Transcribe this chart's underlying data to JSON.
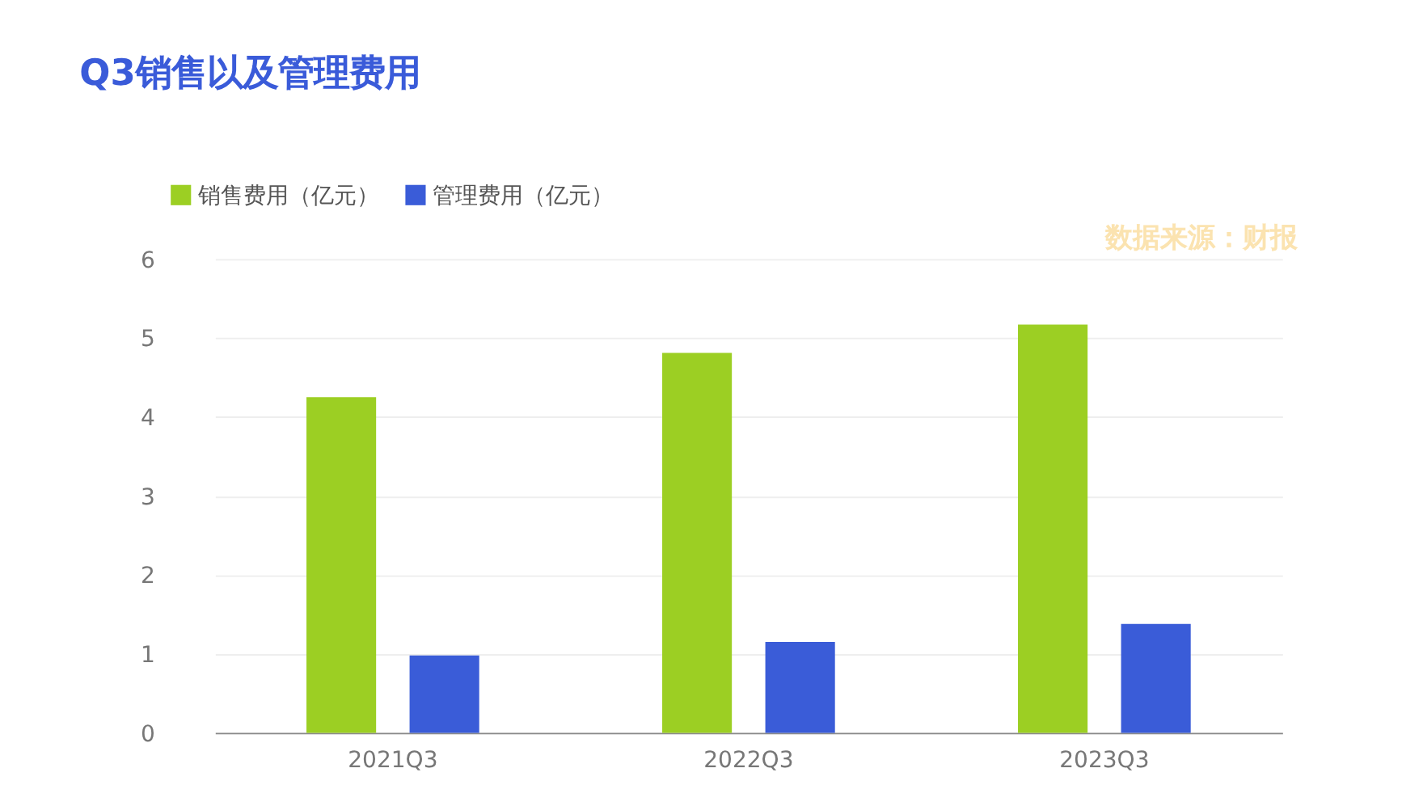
{
  "chart_data": {
    "type": "bar",
    "title": "Q3销售以及管理费用",
    "categories": [
      "2021Q3",
      "2022Q3",
      "2023Q3"
    ],
    "series": [
      {
        "name": "销售费用（亿元）",
        "color": "#9ccf23",
        "values": [
          4.25,
          4.81,
          5.17
        ]
      },
      {
        "name": "管理费用（亿元）",
        "color": "#3a5cd8",
        "values": [
          0.98,
          1.15,
          1.38
        ]
      }
    ],
    "ylim": [
      0,
      6
    ],
    "yticks": [
      0,
      1,
      2,
      3,
      4,
      5,
      6
    ],
    "grid": "y",
    "legend": "top left",
    "annotations": [
      "数据来源：财报"
    ]
  }
}
